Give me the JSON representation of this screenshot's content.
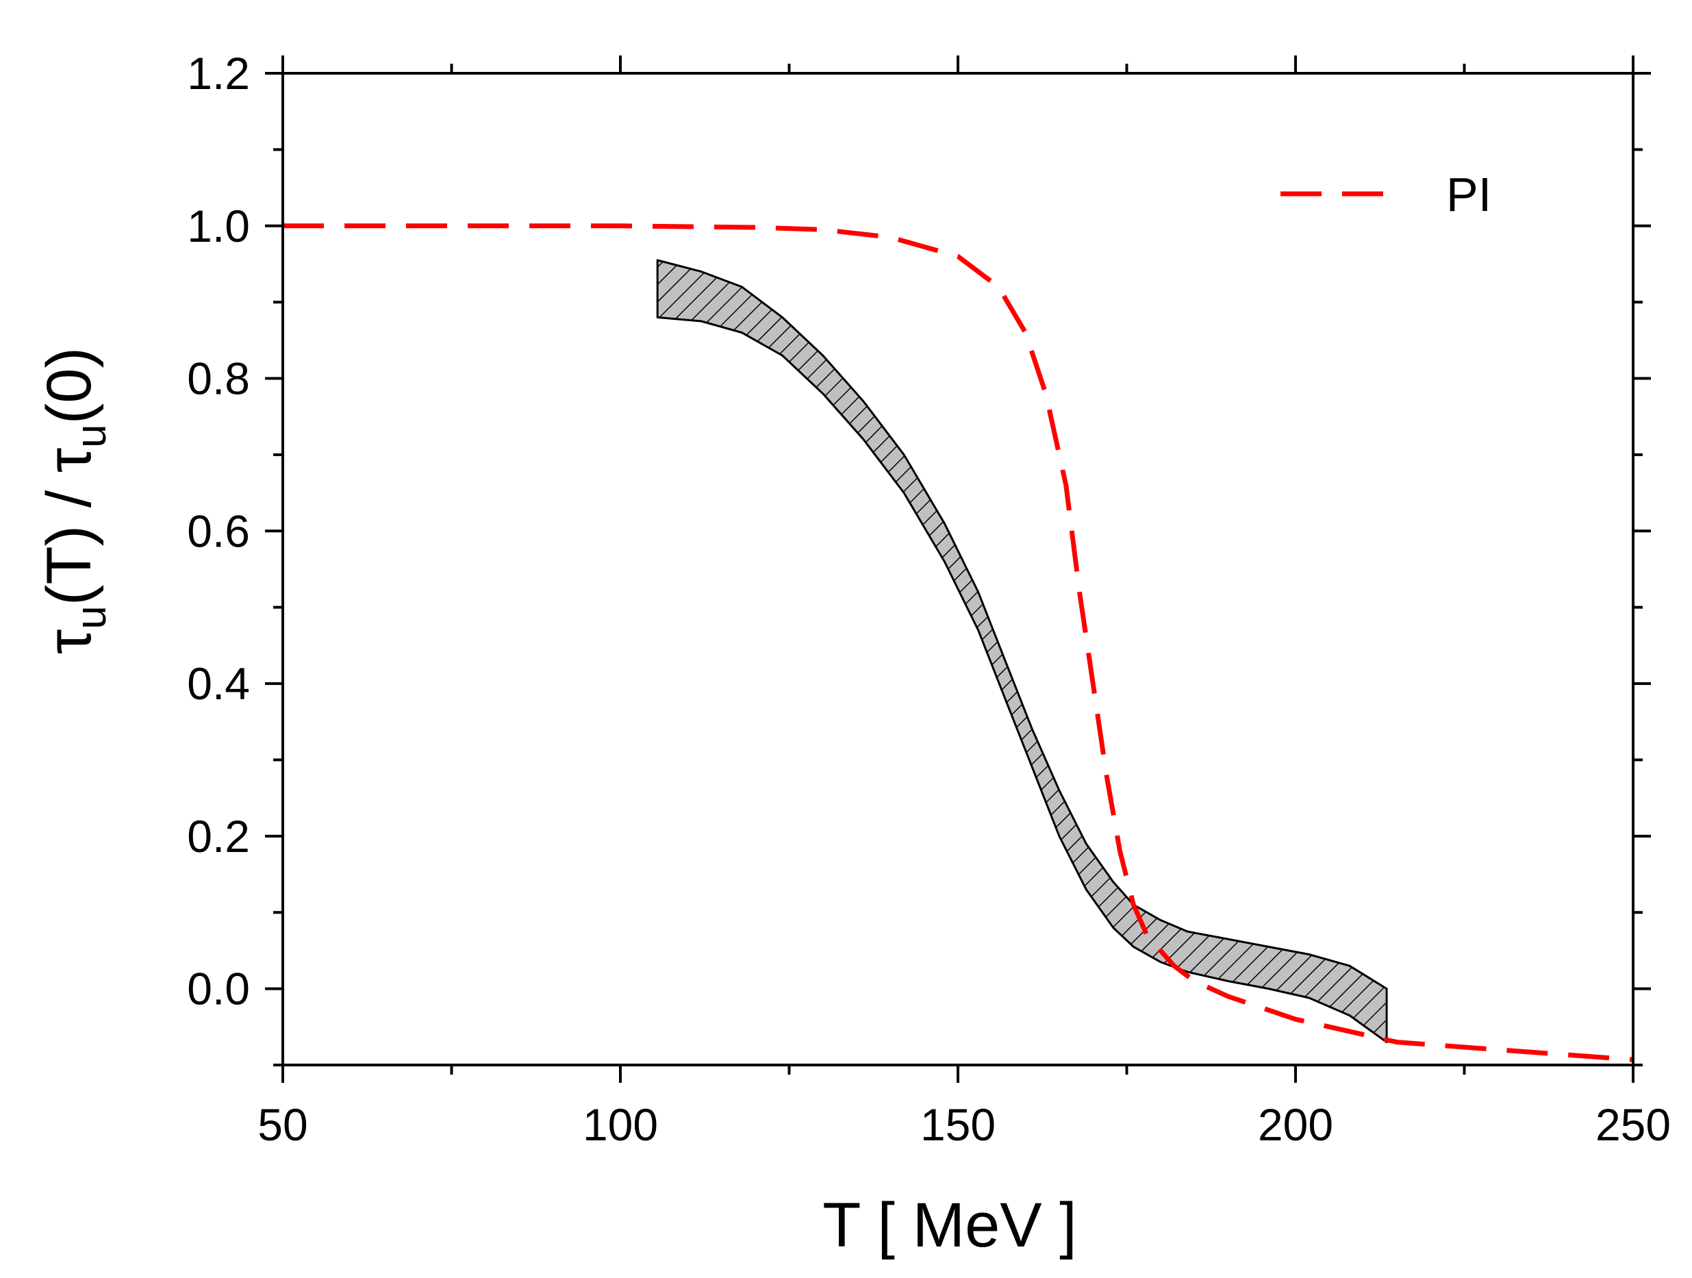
{
  "chart_data": {
    "type": "line",
    "title": "",
    "xlabel": "T  [ MeV ]",
    "ylabel": {
      "base": "τ",
      "sub": "u",
      "mid": "(T) / ",
      "base2": "τ",
      "sub2": "u",
      "end": "(0)"
    },
    "xlim": [
      50,
      250
    ],
    "ylim": [
      -0.1,
      1.2
    ],
    "xticks": [
      50,
      100,
      150,
      200,
      250
    ],
    "xtick_labels": [
      "50",
      "100",
      "150",
      "200",
      "250"
    ],
    "yticks": [
      0.0,
      0.2,
      0.4,
      0.6,
      0.8,
      1.0,
      1.2
    ],
    "ytick_labels": [
      "0.0",
      "0.2",
      "0.4",
      "0.6",
      "0.8",
      "1.0",
      "1.2"
    ],
    "grid": false,
    "legend": {
      "position": "top-right",
      "entries": [
        {
          "label": "PI",
          "style": "dashed",
          "color": "#ff0000"
        }
      ]
    },
    "series": [
      {
        "name": "PI",
        "style": "dashed",
        "color": "#ff0000",
        "x": [
          50,
          80,
          100,
          120,
          130,
          140,
          150,
          156,
          160,
          163,
          166,
          168,
          170,
          172,
          174,
          176,
          178,
          182,
          185,
          190,
          200,
          210,
          215,
          230,
          250
        ],
        "y": [
          1.0,
          1.0,
          1.0,
          0.998,
          0.995,
          0.985,
          0.96,
          0.92,
          0.86,
          0.78,
          0.66,
          0.52,
          0.4,
          0.28,
          0.18,
          0.11,
          0.07,
          0.03,
          0.01,
          -0.01,
          -0.04,
          -0.06,
          -0.07,
          -0.08,
          -0.093
        ]
      },
      {
        "name": "band",
        "style": "hatched-band",
        "color": "#c0c0c0",
        "x": [
          105.5,
          112,
          118,
          124,
          130,
          136,
          142,
          148,
          153,
          157,
          161,
          165,
          169,
          173,
          176,
          180,
          184,
          190,
          196,
          202,
          208,
          213.5
        ],
        "upper": [
          0.955,
          0.94,
          0.92,
          0.88,
          0.83,
          0.77,
          0.7,
          0.61,
          0.52,
          0.43,
          0.34,
          0.26,
          0.19,
          0.14,
          0.11,
          0.09,
          0.075,
          0.065,
          0.055,
          0.045,
          0.03,
          0.0
        ],
        "lower": [
          0.88,
          0.875,
          0.86,
          0.83,
          0.78,
          0.72,
          0.65,
          0.56,
          0.47,
          0.38,
          0.29,
          0.2,
          0.13,
          0.08,
          0.055,
          0.035,
          0.022,
          0.01,
          0.0,
          -0.012,
          -0.035,
          -0.07
        ]
      }
    ]
  }
}
